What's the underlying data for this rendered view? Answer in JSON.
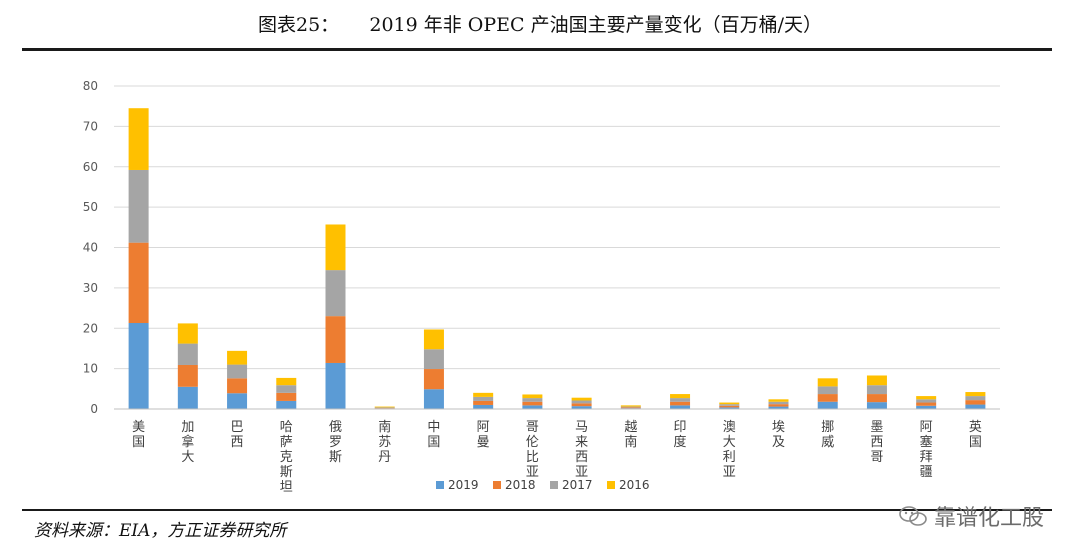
{
  "header": {
    "title": "图表25：     2019 年非 OPEC 产油国主要产量变化（百万桶/天）"
  },
  "footer": {
    "source": "资料来源：EIA，方正证券研究所",
    "watermark": "靠谱化工股"
  },
  "chart_data": {
    "type": "bar",
    "stacked": true,
    "title": "2019 年非 OPEC 产油国主要产量变化（百万桶/天）",
    "xlabel": "",
    "ylabel": "",
    "ylim": [
      0,
      80
    ],
    "yticks": [
      0,
      10,
      20,
      30,
      40,
      50,
      60,
      70,
      80
    ],
    "grid": true,
    "legend": "bottom",
    "categories": [
      "美国",
      "加拿大",
      "巴西",
      "哈萨克斯坦",
      "俄罗斯",
      "南苏丹",
      "中国",
      "阿曼",
      "哥伦比亚",
      "马来西亚",
      "越南",
      "印度",
      "澳大利亚",
      "埃及",
      "挪威",
      "墨西哥",
      "阿塞拜疆",
      "英国"
    ],
    "series": [
      {
        "name": "2019",
        "color": "#5B9BD5",
        "values": [
          21.3,
          5.5,
          3.9,
          2.0,
          11.4,
          0.1,
          4.9,
          1.0,
          0.9,
          0.7,
          0.2,
          0.9,
          0.4,
          0.6,
          1.8,
          1.7,
          0.8,
          1.1
        ]
      },
      {
        "name": "2018",
        "color": "#ED7D31",
        "values": [
          19.9,
          5.4,
          3.7,
          2.0,
          11.6,
          0.1,
          5.0,
          1.0,
          0.9,
          0.7,
          0.2,
          0.9,
          0.4,
          0.6,
          1.9,
          2.0,
          0.8,
          1.1
        ]
      },
      {
        "name": "2017",
        "color": "#A5A5A5",
        "values": [
          18.0,
          5.3,
          3.4,
          1.9,
          11.4,
          0.2,
          4.9,
          1.0,
          0.9,
          0.7,
          0.2,
          0.9,
          0.4,
          0.6,
          1.9,
          2.2,
          0.8,
          1.0
        ]
      },
      {
        "name": "2016",
        "color": "#FFC000",
        "values": [
          15.3,
          5.0,
          3.4,
          1.8,
          11.3,
          0.2,
          4.9,
          1.0,
          0.9,
          0.7,
          0.3,
          1.0,
          0.4,
          0.6,
          2.0,
          2.4,
          0.8,
          1.0
        ]
      }
    ]
  }
}
